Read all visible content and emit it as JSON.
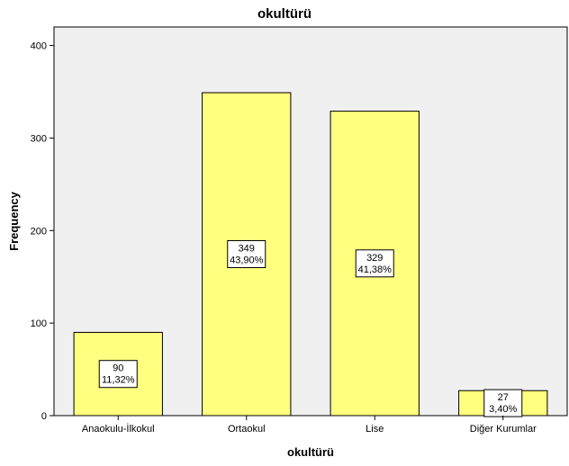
{
  "chart_data": {
    "type": "bar",
    "title": "okultürü",
    "xlabel": "okultürü",
    "ylabel": "Frequency",
    "categories": [
      "Anaokulu-İlkokul",
      "Ortaokul",
      "Lise",
      "Diğer Kurumlar"
    ],
    "values": [
      90,
      349,
      329,
      27
    ],
    "percent_labels": [
      "11,32%",
      "43,90%",
      "41,38%",
      "3,40%"
    ],
    "ylim": [
      0,
      420
    ],
    "yticks": [
      0,
      100,
      200,
      300,
      400
    ],
    "grid": false,
    "bar_color": "#ffff80",
    "plot_background": "#f0f0f0"
  }
}
